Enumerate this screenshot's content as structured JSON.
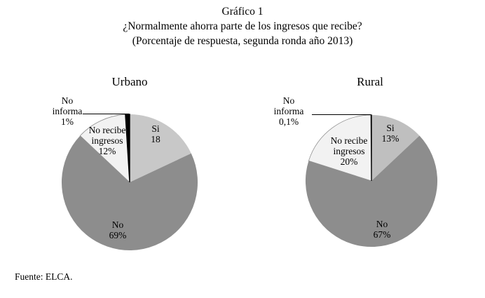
{
  "title": {
    "line1": "Gráfico 1",
    "line2": "¿Normalmente ahorra parte de los ingresos que recibe?",
    "line3": "(Porcentaje de respuesta, segunda ronda año 2013)"
  },
  "source_note": "Fuente: ELCA.",
  "chart_data": [
    {
      "id": "urbano",
      "type": "pie",
      "title": "Urbano",
      "units": "percent of responses",
      "start_angle": "12 o'clock, clockwise",
      "legend": "none (labels on/near slices)",
      "slices": [
        {
          "id": "si",
          "label": "Si",
          "value": 18,
          "label_lines": [
            "Si",
            "18"
          ],
          "color": "#c8c8c8"
        },
        {
          "id": "no",
          "label": "No",
          "value": 69,
          "label_lines": [
            "No",
            "69%"
          ],
          "color": "#8d8d8d"
        },
        {
          "id": "no-recibe-ingresos",
          "label": "No recibe ingresos",
          "value": 12,
          "label_lines": [
            "No recibe",
            "ingresos",
            "12%"
          ],
          "color": "#f2f2f2",
          "border": "#8f8f8f"
        },
        {
          "id": "no-informa",
          "label": "No informa",
          "value": 1,
          "label_lines": [
            "No",
            "informa",
            "1%"
          ],
          "color": "#000000"
        }
      ]
    },
    {
      "id": "rural",
      "type": "pie",
      "title": "Rural",
      "units": "percent of responses",
      "start_angle": "12 o'clock, clockwise",
      "legend": "none (labels on/near slices)",
      "slices": [
        {
          "id": "si",
          "label": "Si",
          "value": 13,
          "label_lines": [
            "Si",
            "13%"
          ],
          "color": "#bfbfbf"
        },
        {
          "id": "no",
          "label": "No",
          "value": 67,
          "label_lines": [
            "No",
            "67%"
          ],
          "color": "#8d8d8d"
        },
        {
          "id": "no-recibe-ingresos",
          "label": "No recibe ingresos",
          "value": 20,
          "label_lines": [
            "No recibe",
            "ingresos",
            "20%"
          ],
          "color": "#f2f2f2",
          "border": "#8f8f8f"
        },
        {
          "id": "no-informa",
          "label": "No informa",
          "value": 0.1,
          "label_lines": [
            "No",
            "informa",
            "0,1%"
          ],
          "color": "#000000"
        }
      ]
    }
  ]
}
